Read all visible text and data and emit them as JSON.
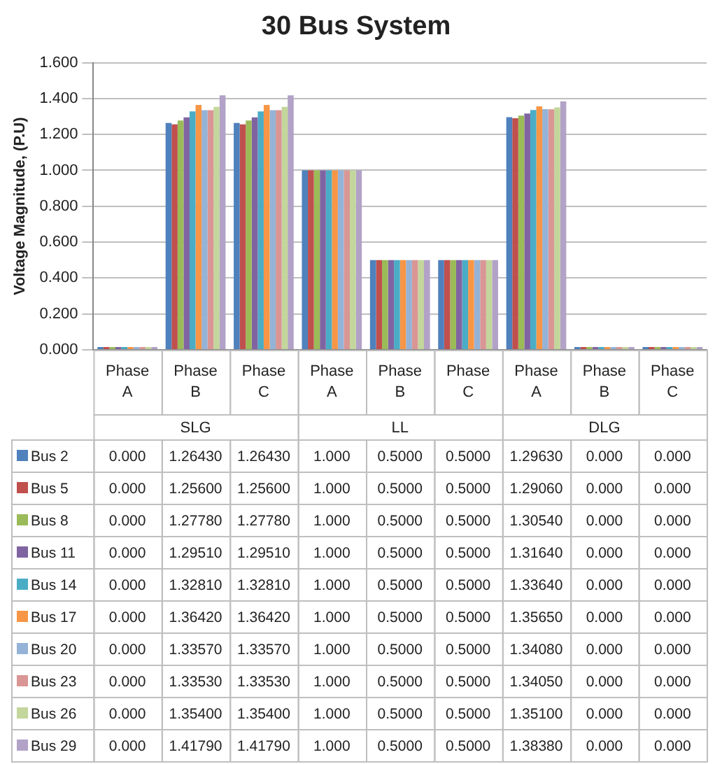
{
  "chart_data": {
    "type": "bar",
    "title": "30 Bus System",
    "ylabel": "Voltage Magnitude, (P.U)",
    "categories": [
      "Phase A",
      "Phase B",
      "Phase C",
      "Phase A",
      "Phase B",
      "Phase C",
      "Phase A",
      "Phase B",
      "Phase C"
    ],
    "annotations": [
      "SLG",
      "LL",
      "DLG"
    ],
    "ylim": [
      0,
      1.6
    ],
    "yticks": [
      {
        "value": 0,
        "label": "0.000"
      },
      {
        "value": 0.2,
        "label": "0.200"
      },
      {
        "value": 0.4,
        "label": "0.400"
      },
      {
        "value": 0.6,
        "label": "0.600"
      },
      {
        "value": 0.8,
        "label": "0.800"
      },
      {
        "value": 1,
        "label": "1.000"
      },
      {
        "value": 1.2,
        "label": "1.200"
      },
      {
        "value": 1.4,
        "label": "1.400"
      },
      {
        "value": 1.6,
        "label": "1.600"
      }
    ],
    "grid": "y",
    "legend": "bottom",
    "series": [
      {
        "name": "Bus 2",
        "color": "#4f81bd",
        "values": [
          0,
          1.2643,
          1.2643,
          1,
          0.5,
          0.5,
          1.2963,
          0,
          0
        ],
        "value_labels": [
          "0.000",
          "1.26430",
          "1.26430",
          "1.000",
          "0.5000",
          "0.5000",
          "1.29630",
          "0.000",
          "0.000"
        ]
      },
      {
        "name": "Bus 5",
        "color": "#c0504d",
        "values": [
          0,
          1.256,
          1.256,
          1,
          0.5,
          0.5,
          1.2906,
          0,
          0
        ],
        "value_labels": [
          "0.000",
          "1.25600",
          "1.25600",
          "1.000",
          "0.5000",
          "0.5000",
          "1.29060",
          "0.000",
          "0.000"
        ]
      },
      {
        "name": "Bus 8",
        "color": "#9bbb59",
        "values": [
          0,
          1.2778,
          1.2778,
          1,
          0.5,
          0.5,
          1.3054,
          0,
          0
        ],
        "value_labels": [
          "0.000",
          "1.27780",
          "1.27780",
          "1.000",
          "0.5000",
          "0.5000",
          "1.30540",
          "0.000",
          "0.000"
        ]
      },
      {
        "name": "Bus 11",
        "color": "#8064a2",
        "values": [
          0,
          1.2951,
          1.2951,
          1,
          0.5,
          0.5,
          1.3164,
          0,
          0
        ],
        "value_labels": [
          "0.000",
          "1.29510",
          "1.29510",
          "1.000",
          "0.5000",
          "0.5000",
          "1.31640",
          "0.000",
          "0.000"
        ]
      },
      {
        "name": "Bus 14",
        "color": "#4bacc6",
        "values": [
          0,
          1.3281,
          1.3281,
          1,
          0.5,
          0.5,
          1.3364,
          0,
          0
        ],
        "value_labels": [
          "0.000",
          "1.32810",
          "1.32810",
          "1.000",
          "0.5000",
          "0.5000",
          "1.33640",
          "0.000",
          "0.000"
        ]
      },
      {
        "name": "Bus 17",
        "color": "#f79646",
        "values": [
          0,
          1.3642,
          1.3642,
          1,
          0.5,
          0.5,
          1.3565,
          0,
          0
        ],
        "value_labels": [
          "0.000",
          "1.36420",
          "1.36420",
          "1.000",
          "0.5000",
          "0.5000",
          "1.35650",
          "0.000",
          "0.000"
        ]
      },
      {
        "name": "Bus 20",
        "color": "#95b3d7",
        "values": [
          0,
          1.3357,
          1.3357,
          1,
          0.5,
          0.5,
          1.3408,
          0,
          0
        ],
        "value_labels": [
          "0.000",
          "1.33570",
          "1.33570",
          "1.000",
          "0.5000",
          "0.5000",
          "1.34080",
          "0.000",
          "0.000"
        ]
      },
      {
        "name": "Bus 23",
        "color": "#d99694",
        "values": [
          0,
          1.3353,
          1.3353,
          1,
          0.5,
          0.5,
          1.3405,
          0,
          0
        ],
        "value_labels": [
          "0.000",
          "1.33530",
          "1.33530",
          "1.000",
          "0.5000",
          "0.5000",
          "1.34050",
          "0.000",
          "0.000"
        ]
      },
      {
        "name": "Bus 26",
        "color": "#c3d69b",
        "values": [
          0,
          1.354,
          1.354,
          1,
          0.5,
          0.5,
          1.351,
          0,
          0
        ],
        "value_labels": [
          "0.000",
          "1.35400",
          "1.35400",
          "1.000",
          "0.5000",
          "0.5000",
          "1.35100",
          "0.000",
          "0.000"
        ]
      },
      {
        "name": "Bus 29",
        "color": "#b2a2c7",
        "values": [
          0,
          1.4179,
          1.4179,
          1,
          0.5,
          0.5,
          1.3838,
          0,
          0
        ],
        "value_labels": [
          "0.000",
          "1.41790",
          "1.41790",
          "1.000",
          "0.5000",
          "0.5000",
          "1.38380",
          "0.000",
          "0.000"
        ]
      }
    ]
  }
}
